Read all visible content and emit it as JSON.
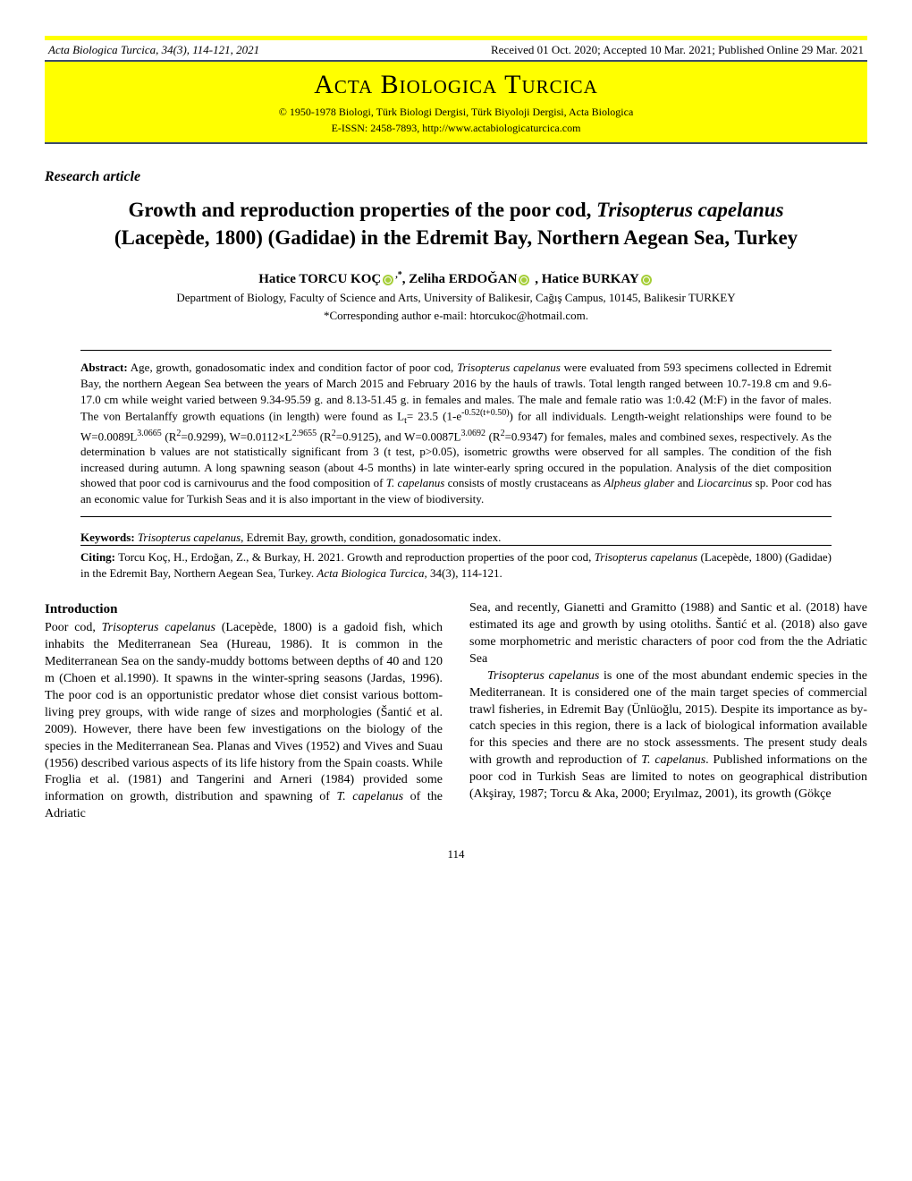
{
  "header": {
    "journal_ref": "Acta Biologica Turcica, 34(3), 114-121, 2021",
    "dates": "Received 01 Oct. 2020; Accepted 10 Mar. 2021; Published Online 29 Mar. 2021"
  },
  "banner": {
    "title": "Acta Biologica Turcica",
    "subtitle": "© 1950-1978 Biologi, Türk Biologi Dergisi, Türk Biyoloji Dergisi, Acta Biologica",
    "issn": "E-ISSN: 2458-7893, http://www.actabiologicaturcica.com"
  },
  "article_type": "Research article",
  "title": {
    "line1_pre": "Growth and reproduction properties of the poor cod, ",
    "line1_ital": "Trisopterus capelanus",
    "line2": "(Lacepède, 1800) (Gadidae) in the Edremit Bay, Northern Aegean Sea, Turkey"
  },
  "authors": {
    "a1": "Hatice TORCU KOÇ",
    "a1_sup": ",*",
    "a2": "Zeliha ERDOĞAN",
    "a3": "Hatice BURKAY"
  },
  "affiliation": "Department of Biology, Faculty of Science and Arts, University of Balikesir, Cağış Campus, 10145, Balikesir TURKEY",
  "corresponding": "*Corresponding author e-mail: htorcukoc@hotmail.com.",
  "abstract": {
    "label": "Abstract:",
    "text_pre": " Age, growth, gonadosomatic index and condition factor of poor cod, ",
    "ital1": "Trisopterus capelanus",
    "text_mid": " were evaluated from 593 specimens collected in Edremit Bay, the northern Aegean Sea between the years of March 2015 and February 2016 by the hauls of trawls. Total length ranged between 10.7-19.8 cm and 9.6-17.0 cm while weight varied between 9.34-95.59 g. and 8.13-51.45 g. in females and males. The male and female ratio was 1:0.42 (M:F) in the favor of males. The von Bertalanffy growth equations (in length) were found as L",
    "sub_t": "t",
    "eq1": "= 23.5 (1-e",
    "exp1": "-0.52(t+0.50)",
    "eq2": ") for all individuals. Length-weight relationships were found to be W=0.0089L",
    "exp2": "3.0665",
    "eq3": " (R",
    "sup2a": "2",
    "eq4": "=0.9299), W=0.0112×L",
    "exp3": "2.9655",
    "eq5": " (R",
    "sup2b": "2",
    "eq6": "=0.9125), and W=0.0087L",
    "exp4": "3.0692",
    "eq7": " (R",
    "sup2c": "2",
    "eq8": "=0.9347) for females, males and combined sexes, respectively. As the determination b values are not statistically significant from 3 (t test, p>0.05), isometric growths were observed for all samples. The condition of the fish increased during autumn. A long spawning season (about 4-5 months) in late winter-early spring occured in the population. Analysis of the diet composition showed that poor cod is carnivourus and the food composition of ",
    "ital2": "T. capelanus",
    "text_post": " consists of mostly crustaceans as ",
    "ital3": "Alpheus glaber",
    "and": " and ",
    "ital4": "Liocarcinus",
    "text_end": " sp. Poor cod has an economic value for Turkish Seas and it is also important in the view of biodiversity."
  },
  "keywords": {
    "label": "Keywords:",
    "ital": "Trisopterus capelanus",
    "rest": ", Edremit Bay, growth, condition, gonadosomatic index."
  },
  "citing": {
    "label": "Citing:",
    "text_pre": " Torcu Koç, H., Erdoğan, Z., & Burkay, H. 2021. Growth and reproduction properties of the poor cod, ",
    "ital1": "Trisopterus capelanus",
    "text_mid": " (Lacepède, 1800) (Gadidae) in the Edremit Bay, Northern Aegean Sea, Turkey. ",
    "ital2": "Acta Biologica Turcica, ",
    "text_end": "34(3), 114-121."
  },
  "body": {
    "intro_heading": "Introduction",
    "col1_p1_pre": "Poor cod, ",
    "col1_p1_ital": "Trisopterus capelanus",
    "col1_p1_mid": " (Lacepède, 1800) is a gadoid fish, which inhabits the Mediterranean Sea (Hureau, 1986). It is common in the Mediterranean Sea on the sandy-muddy bottoms between depths of 40 and 120 m (Choen et al.1990). It spawns in the winter-spring seasons (Jardas, 1996). The poor cod is an opportunistic predator whose diet consist various bottom-living prey groups, with wide range of sizes and morphologies (Šantić et al. 2009). However, there have been few investigations on the biology of the species in the Mediterranean Sea. Planas and Vives (1952) and Vives and Suau (1956) described various aspects of its life history from the Spain coasts. While Froglia et al. (1981) and Tangerini and Arneri (1984) provided some information on growth, distribution and spawning of ",
    "col1_p1_ital2": "T. capelanus",
    "col1_p1_end": " of the Adriatic",
    "col2_p1": "Sea, and recently, Gianetti and Gramitto (1988) and Santic et al. (2018) have estimated its age and growth by using otoliths. Šantić et al. (2018) also gave some morphometric and meristic characters of poor cod from the the Adriatic Sea",
    "col2_p2_ital": "Trisopterus capelanus",
    "col2_p2_mid": " is one of the most abundant endemic species in the Mediterranean. It is considered one of the main target species of commercial trawl fisheries, in Edremit Bay (Ünlüoğlu, 2015). Despite its importance as by-catch species in this region, there is a lack of biological information available for this species and there are no stock assessments. The present study deals with growth and reproduction of ",
    "col2_p2_ital2": "T. capelanus",
    "col2_p2_end": ". Published informations on the poor cod in Turkish Seas are limited to notes on geographical distribution (Akşiray, 1987; Torcu & Aka, 2000; Eryılmaz, 2001), its growth (Gökçe"
  },
  "pagenum": "114",
  "colors": {
    "banner_bg": "#ffff00",
    "banner_border": "#3a4a6d",
    "orcid": "#a6ce39"
  }
}
